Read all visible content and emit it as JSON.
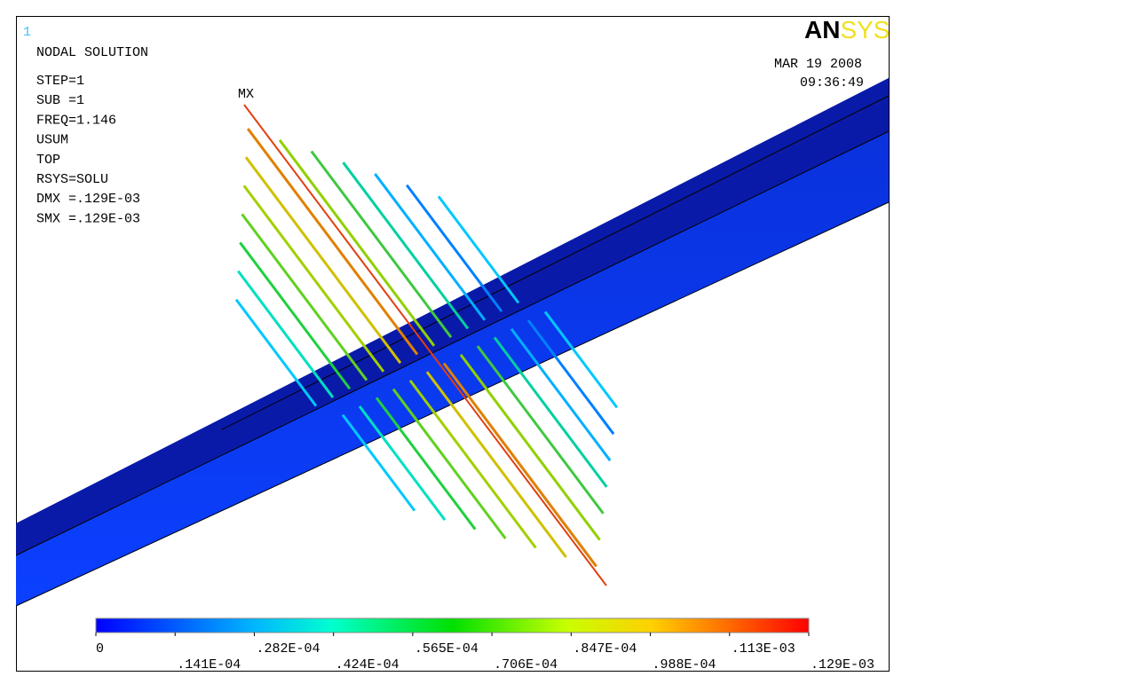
{
  "window_number": "1",
  "info": {
    "title": "NODAL SOLUTION",
    "lines": [
      "STEP=1",
      "SUB =1",
      "FREQ=1.146",
      "USUM",
      "TOP",
      "RSYS=SOLU",
      "DMX =.129E-03",
      "SMX =.129E-03"
    ]
  },
  "max_marker": "MX",
  "date": "MAR 19 2008",
  "time": "09:36:49",
  "logo": {
    "left": "AN",
    "right": "SYS"
  },
  "legend": {
    "labels": [
      "0",
      ".141E-04",
      ".282E-04",
      ".424E-04",
      ".565E-04",
      ".706E-04",
      ".847E-04",
      ".988E-04",
      ".113E-03",
      ".129E-03"
    ]
  }
}
